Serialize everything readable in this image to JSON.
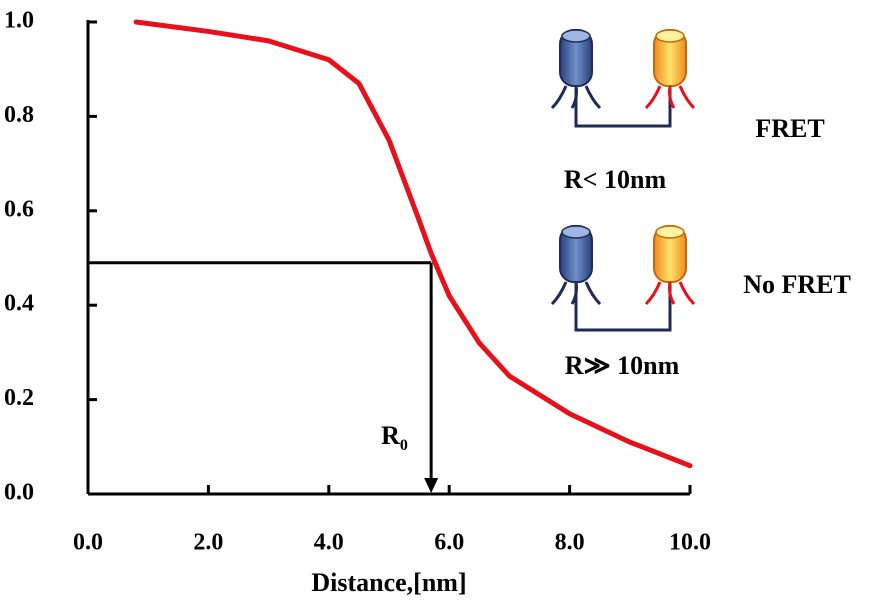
{
  "chart_data": {
    "type": "line",
    "x_label": "Distance,[nm]",
    "x": [
      0.8,
      2,
      3,
      4,
      4.5,
      5,
      5.5,
      5.7,
      6,
      6.5,
      7,
      8,
      9,
      10
    ],
    "values": [
      1.0,
      0.98,
      0.96,
      0.92,
      0.87,
      0.75,
      0.58,
      0.51,
      0.42,
      0.32,
      0.25,
      0.17,
      0.11,
      0.06
    ],
    "color": "#e8101a",
    "xlim": [
      0,
      10
    ],
    "ylim": [
      0,
      1
    ],
    "xticks": [
      {
        "value": 0,
        "label": "0.0"
      },
      {
        "value": 2,
        "label": "2.0"
      },
      {
        "value": 4,
        "label": "4.0"
      },
      {
        "value": 6,
        "label": "6.0"
      },
      {
        "value": 8,
        "label": "8.0"
      },
      {
        "value": 10,
        "label": "10.0"
      }
    ],
    "yticks": [
      {
        "value": 0,
        "label": "0.0"
      },
      {
        "value": 0.2,
        "label": "0.2"
      },
      {
        "value": 0.4,
        "label": "0.4"
      },
      {
        "value": 0.6,
        "label": "0.6"
      },
      {
        "value": 0.8,
        "label": "0.8"
      },
      {
        "value": 1,
        "label": "1.0"
      }
    ],
    "r0_marker": {
      "x": 5.7,
      "y": 0.49,
      "label": "R",
      "subscript": "0"
    },
    "annotations": {
      "fret": "FRET",
      "fret_distance": "R< 10nm",
      "no_fret": "No FRET",
      "no_fret_distance": "R≫ 10nm"
    }
  }
}
